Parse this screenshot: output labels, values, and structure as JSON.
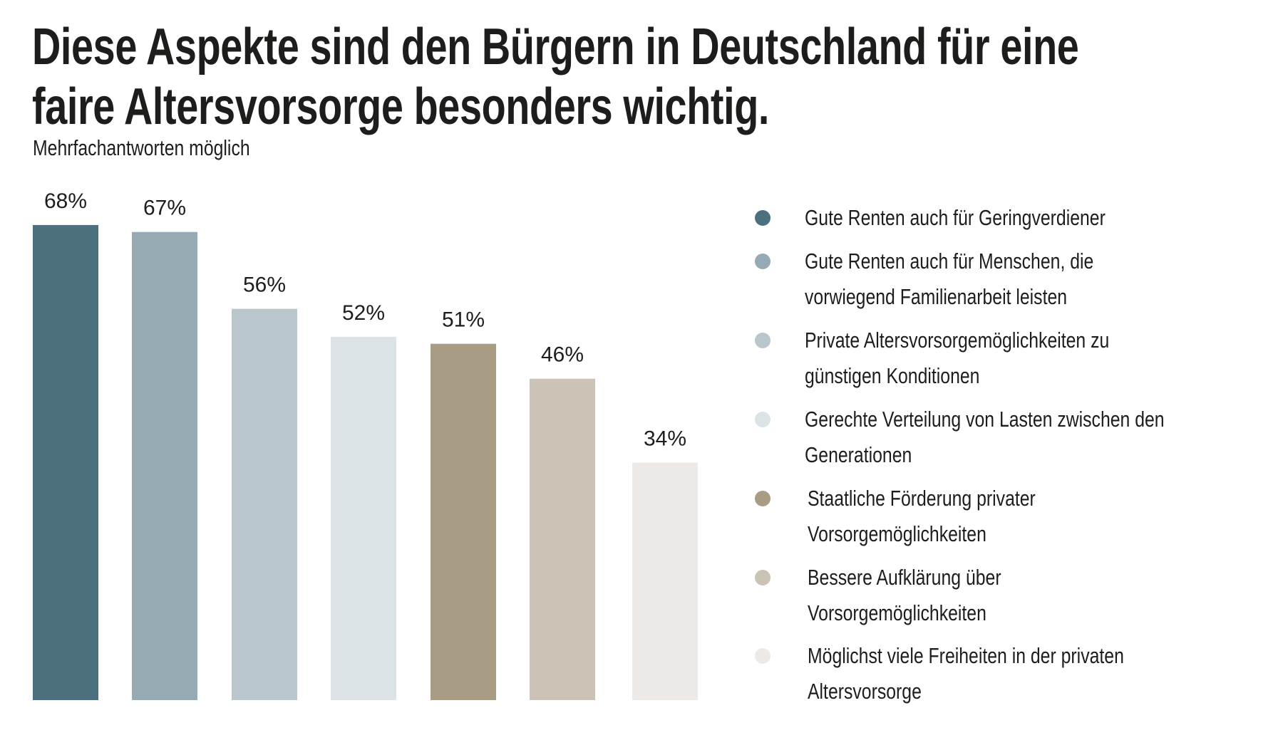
{
  "header": {
    "title_line1": "Diese Aspekte sind den Bürgern in Deutschland für eine",
    "title_line2": "faire Altersvorsorge besonders wichtig.",
    "subtitle": "Mehrfachantworten möglich"
  },
  "chart_data": {
    "type": "bar",
    "title": "Diese Aspekte sind den Bürgern in Deutschland für eine faire Altersvorsorge besonders wichtig.",
    "subtitle": "Mehrfachantworten möglich",
    "xlabel": "",
    "ylabel": "",
    "ylim": [
      0,
      70
    ],
    "grid": false,
    "legend_position": "right",
    "unit": "%",
    "categories": [
      "Gute Renten auch für Geringverdiener",
      "Gute Renten auch für Menschen, die vorwiegend Familienarbeit leisten",
      "Private Altersvorsorgemöglichkeiten zu günstigen Konditionen",
      "Gerechte Verteilung von Lasten zwischen den Generationen",
      "Staatliche Förderung privater Vorsorgemöglichkeiten",
      "Bessere Aufklärung über Vorsorgemöglichkeiten",
      "Möglichst viele Freiheiten in der privaten Altersvorsorge"
    ],
    "values": [
      68,
      67,
      56,
      52,
      51,
      46,
      34
    ],
    "labels": [
      "68%",
      "67%",
      "56%",
      "52%",
      "51%",
      "46%",
      "34%"
    ],
    "colors": [
      "#4d707e",
      "#95aab2",
      "#b9c6cc",
      "#dbe3e7",
      "#a89c84",
      "#cbc3b5",
      "#ede9e6"
    ]
  },
  "legend": {
    "items": [
      {
        "lines": [
          "Gute Renten auch für Geringverdiener"
        ],
        "color": "#4d707e"
      },
      {
        "lines": [
          "Gute Renten auch für Menschen, die",
          "vorwiegend Familienarbeit leisten"
        ],
        "color": "#95aab2"
      },
      {
        "lines": [
          "Private Altersvorsorgemöglichkeiten zu",
          "günstigen Konditionen"
        ],
        "color": "#b9c6cc"
      },
      {
        "lines": [
          "Gerechte Verteilung von Lasten zwischen den",
          "Generationen"
        ],
        "color": "#dbe3e7"
      },
      {
        "lines": [
          "Staatliche Förderung privater",
          "Vorsorgemöglichkeiten"
        ],
        "color": "#a89c84"
      },
      {
        "lines": [
          "Bessere Aufklärung über",
          "Vorsorgemöglichkeiten"
        ],
        "color": "#cbc3b5"
      },
      {
        "lines": [
          "Möglichst viele Freiheiten in der privaten",
          "Altersvorsorge"
        ],
        "color": "#ede9e6"
      }
    ]
  }
}
